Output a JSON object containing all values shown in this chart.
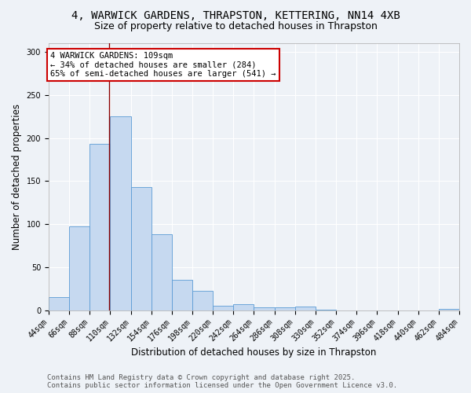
{
  "title1": "4, WARWICK GARDENS, THRAPSTON, KETTERING, NN14 4XB",
  "title2": "Size of property relative to detached houses in Thrapston",
  "xlabel": "Distribution of detached houses by size in Thrapston",
  "ylabel": "Number of detached properties",
  "bin_left_edges": [
    44,
    66,
    88,
    110,
    132,
    154,
    176,
    198,
    220,
    242,
    264,
    286,
    308,
    330,
    352,
    374,
    396,
    418,
    440,
    462
  ],
  "bar_heights": [
    15,
    97,
    193,
    225,
    143,
    88,
    35,
    23,
    5,
    7,
    3,
    3,
    4,
    1,
    0,
    0,
    0,
    0,
    0,
    2
  ],
  "bin_width": 22,
  "bar_color": "#c6d9f0",
  "bar_edge_color": "#5b9bd5",
  "property_size": 109,
  "vline_color": "#8b0000",
  "annotation_text": "4 WARWICK GARDENS: 109sqm\n← 34% of detached houses are smaller (284)\n65% of semi-detached houses are larger (541) →",
  "annotation_box_color": "#ffffff",
  "annotation_box_edge_color": "#cc0000",
  "ylim": [
    0,
    310
  ],
  "yticks": [
    0,
    50,
    100,
    150,
    200,
    250,
    300
  ],
  "background_color": "#eef2f7",
  "grid_color": "#ffffff",
  "footnote": "Contains HM Land Registry data © Crown copyright and database right 2025.\nContains public sector information licensed under the Open Government Licence v3.0.",
  "title1_fontsize": 10,
  "title2_fontsize": 9,
  "xlabel_fontsize": 8.5,
  "ylabel_fontsize": 8.5,
  "tick_fontsize": 7,
  "annotation_fontsize": 7.5,
  "footnote_fontsize": 6.5
}
